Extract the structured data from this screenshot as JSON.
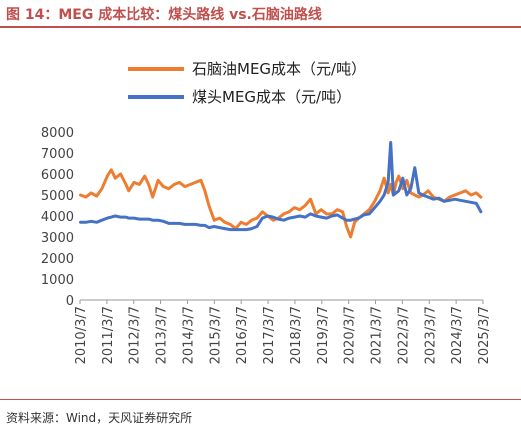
{
  "header": {
    "title": "图 14：MEG 成本比较：煤头路线 vs.石脑油路线"
  },
  "footer": {
    "source": "资料来源：Wind，天风证券研究所"
  },
  "colors": {
    "naphtha": "#ed7d31",
    "coal": "#4472c4",
    "accent": "#c0504d"
  },
  "chart_data": {
    "type": "line",
    "title": "图 14：MEG 成本比较：煤头路线 vs.石脑油路线",
    "xlabel": "",
    "ylabel": "",
    "ylim": [
      0,
      8000
    ],
    "yticks": [
      "0",
      "1000",
      "2000",
      "3000",
      "4000",
      "5000",
      "6000",
      "7000",
      "8000"
    ],
    "xticks": [
      "2010/3/7",
      "2011/3/7",
      "2012/3/7",
      "2013/3/7",
      "2014/3/7",
      "2015/3/7",
      "2016/3/7",
      "2017/3/7",
      "2018/3/7",
      "2019/3/7",
      "2020/3/7",
      "2021/3/7",
      "2022/3/7",
      "2023/3/7",
      "2024/3/7",
      "2025/3/7"
    ],
    "grid": false,
    "legend_position": "top",
    "x": [
      2010.2,
      2010.4,
      2010.6,
      2010.8,
      2011.0,
      2011.2,
      2011.35,
      2011.5,
      2011.7,
      2011.9,
      2012.0,
      2012.2,
      2012.4,
      2012.6,
      2012.75,
      2012.9,
      2013.1,
      2013.3,
      2013.5,
      2013.7,
      2013.9,
      2014.1,
      2014.3,
      2014.5,
      2014.7,
      2014.85,
      2015.0,
      2015.2,
      2015.4,
      2015.6,
      2015.8,
      2016.0,
      2016.2,
      2016.4,
      2016.6,
      2016.8,
      2017.0,
      2017.2,
      2017.4,
      2017.6,
      2017.8,
      2018.0,
      2018.2,
      2018.4,
      2018.6,
      2018.8,
      2019.0,
      2019.2,
      2019.4,
      2019.6,
      2019.8,
      2020.0,
      2020.15,
      2020.3,
      2020.45,
      2020.6,
      2020.8,
      2021.0,
      2021.2,
      2021.4,
      2021.55,
      2021.7,
      2021.8,
      2021.9,
      2022.0,
      2022.1,
      2022.25,
      2022.4,
      2022.55,
      2022.7,
      2022.85,
      2023.0,
      2023.2,
      2023.4,
      2023.6,
      2023.8,
      2024.0,
      2024.2,
      2024.4,
      2024.6,
      2024.8,
      2025.0,
      2025.17
    ],
    "series": [
      {
        "name": "石脑油MEG成本（元/吨）",
        "color": "#ed7d31",
        "values": [
          5000,
          4900,
          5100,
          4950,
          5300,
          5900,
          6200,
          5800,
          6000,
          5500,
          5200,
          5600,
          5500,
          5900,
          5500,
          4900,
          5700,
          5400,
          5300,
          5500,
          5600,
          5400,
          5500,
          5600,
          5700,
          5200,
          4500,
          3800,
          3900,
          3700,
          3600,
          3400,
          3700,
          3600,
          3800,
          3900,
          4200,
          4000,
          3800,
          3900,
          4100,
          4200,
          4400,
          4300,
          4500,
          4800,
          4100,
          4300,
          4100,
          4100,
          4300,
          4200,
          3500,
          3000,
          3700,
          3900,
          4100,
          4300,
          4700,
          5200,
          5800,
          5100,
          5500,
          5000,
          5600,
          5900,
          5300,
          5700,
          5100,
          5000,
          4900,
          5000,
          5200,
          4900,
          4800,
          4700,
          4900,
          5000,
          5100,
          5200,
          5000,
          5100,
          4900
        ]
      },
      {
        "name": "煤头MEG成本（元/吨）",
        "color": "#4472c4",
        "values": [
          3700,
          3700,
          3750,
          3700,
          3800,
          3900,
          3950,
          4000,
          3950,
          3950,
          3900,
          3900,
          3850,
          3850,
          3850,
          3800,
          3800,
          3750,
          3650,
          3650,
          3650,
          3600,
          3600,
          3600,
          3550,
          3550,
          3450,
          3500,
          3450,
          3400,
          3350,
          3350,
          3350,
          3350,
          3400,
          3500,
          3900,
          4000,
          3950,
          3850,
          3800,
          3900,
          3950,
          4000,
          3950,
          4100,
          4000,
          3950,
          3900,
          4000,
          4050,
          3900,
          3800,
          3800,
          3850,
          3900,
          4050,
          4100,
          4400,
          4700,
          5000,
          5600,
          7500,
          5000,
          5100,
          5200,
          5800,
          5000,
          5300,
          6300,
          5100,
          5000,
          4900,
          4800,
          4850,
          4700,
          4750,
          4800,
          4750,
          4700,
          4650,
          4600,
          4200
        ]
      }
    ]
  }
}
